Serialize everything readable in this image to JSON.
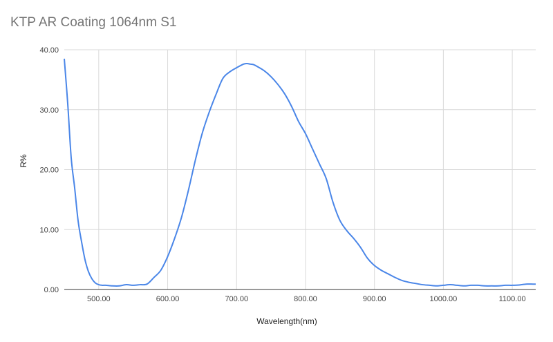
{
  "chart_data": {
    "type": "line",
    "title": "KTP AR Coating 1064nm S1",
    "xlabel": "Wavelength(nm)",
    "ylabel": "R%",
    "xlim": [
      450,
      1134
    ],
    "ylim": [
      0,
      40
    ],
    "x_ticks": [
      500,
      600,
      700,
      800,
      900,
      1000,
      1100
    ],
    "x_tick_labels": [
      "500.00",
      "600.00",
      "700.00",
      "800.00",
      "900.00",
      "1000.00",
      "1100.00"
    ],
    "y_ticks": [
      0,
      10,
      20,
      30,
      40
    ],
    "y_tick_labels": [
      "0.00",
      "10.00",
      "20.00",
      "30.00",
      "40.00"
    ],
    "grid": true,
    "series": [
      {
        "name": "R%",
        "color": "#4a86e8",
        "x": [
          450,
          455,
          460,
          465,
          470,
          475,
          480,
          485,
          490,
          495,
          500,
          505,
          510,
          520,
          530,
          540,
          550,
          560,
          570,
          580,
          590,
          600,
          610,
          620,
          630,
          640,
          650,
          660,
          670,
          680,
          690,
          700,
          710,
          715,
          720,
          725,
          730,
          740,
          750,
          760,
          770,
          780,
          790,
          800,
          810,
          820,
          830,
          840,
          850,
          860,
          870,
          880,
          890,
          900,
          910,
          920,
          930,
          940,
          950,
          960,
          970,
          980,
          990,
          1000,
          1010,
          1020,
          1030,
          1040,
          1050,
          1060,
          1070,
          1080,
          1090,
          1100,
          1110,
          1120,
          1130,
          1134
        ],
        "y": [
          38.5,
          31,
          22,
          17,
          11.5,
          8,
          5,
          3,
          1.8,
          1.1,
          0.8,
          0.7,
          0.7,
          0.6,
          0.6,
          0.8,
          0.7,
          0.8,
          0.9,
          2,
          3.2,
          5.5,
          8.5,
          12,
          16.5,
          21.5,
          26,
          29.5,
          32.5,
          35.2,
          36.3,
          37,
          37.6,
          37.7,
          37.6,
          37.5,
          37.2,
          36.5,
          35.5,
          34.2,
          32.6,
          30.5,
          28,
          26,
          23.5,
          21,
          18.5,
          14.5,
          11.5,
          9.8,
          8.5,
          7,
          5.2,
          4,
          3.2,
          2.6,
          2,
          1.5,
          1.2,
          1,
          0.8,
          0.7,
          0.6,
          0.7,
          0.8,
          0.7,
          0.6,
          0.7,
          0.7,
          0.6,
          0.6,
          0.6,
          0.7,
          0.7,
          0.75,
          0.9,
          0.9,
          0.9
        ]
      }
    ]
  }
}
